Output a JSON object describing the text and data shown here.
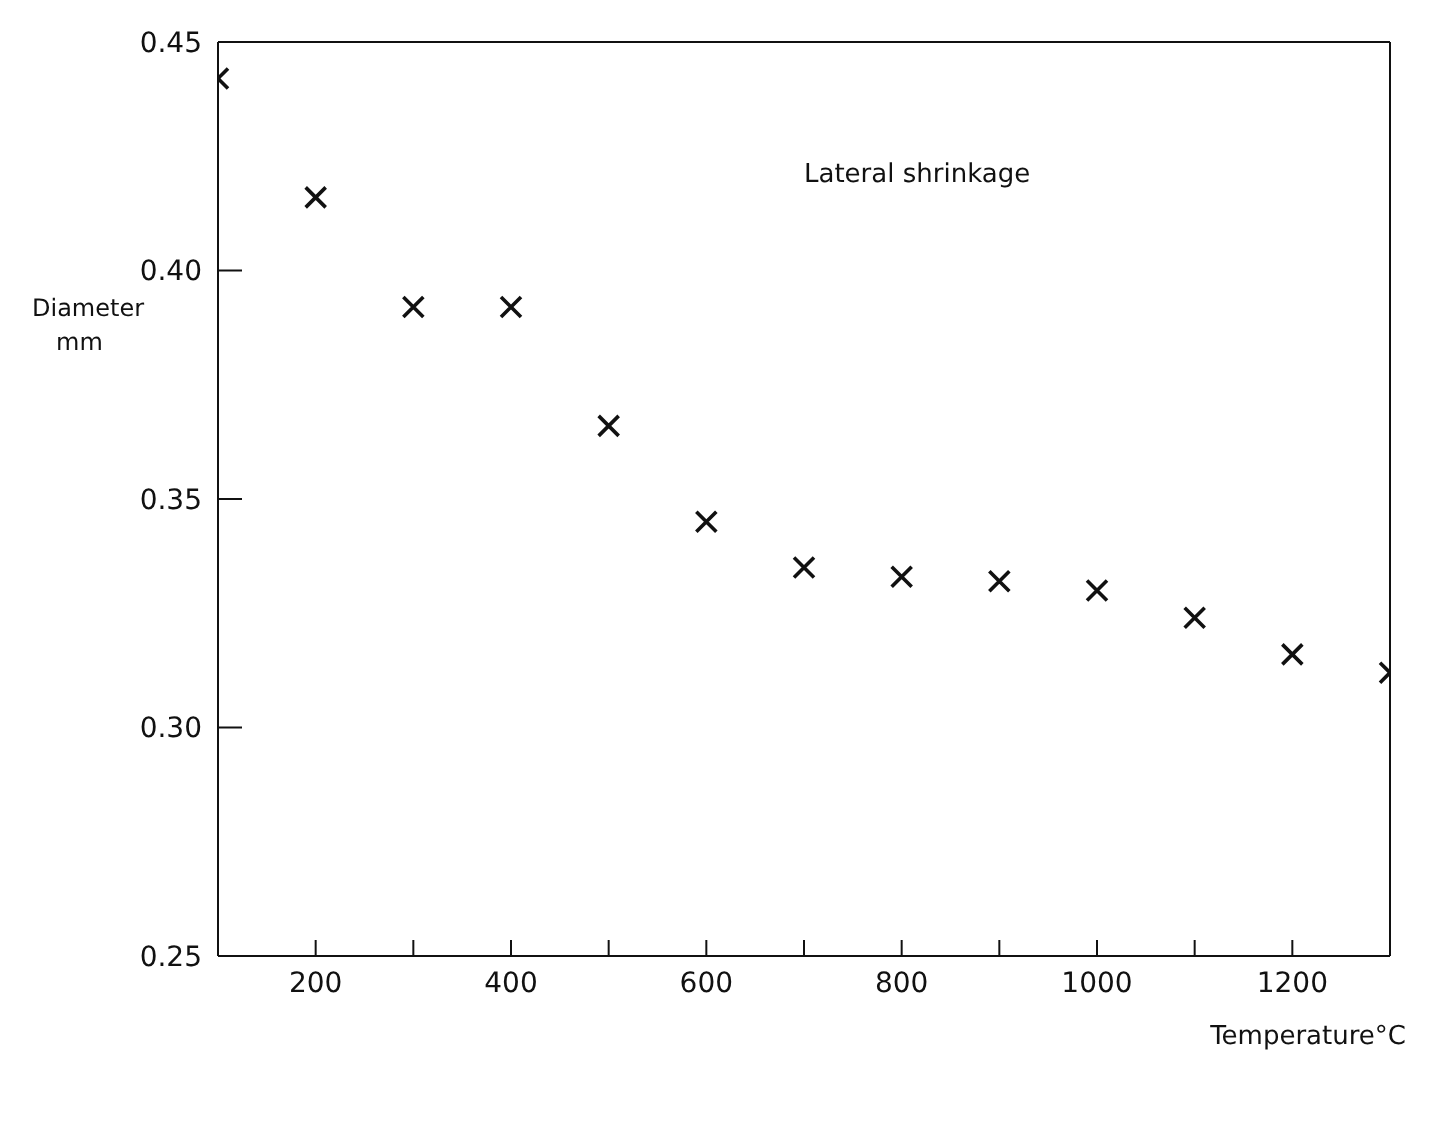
{
  "chart_data": {
    "type": "scatter",
    "xlabel": "Temperature°C",
    "ylabel": "Diameter mm",
    "annotations": [
      "Lateral shrinkage"
    ],
    "x": [
      100,
      200,
      300,
      400,
      500,
      600,
      700,
      800,
      900,
      1000,
      1100,
      1200,
      1300
    ],
    "series": [
      {
        "color": "#111111",
        "values": [
          0.442,
          0.416,
          0.392,
          0.392,
          0.366,
          0.345,
          0.335,
          0.333,
          0.332,
          0.33,
          0.324,
          0.316,
          0.312
        ]
      }
    ],
    "xlim": [
      100,
      1300
    ],
    "xticks": [
      {
        "value": 100,
        "label": null
      },
      200,
      {
        "value": 300,
        "label": null
      },
      400,
      {
        "value": 500,
        "label": null
      },
      600,
      {
        "value": 700,
        "label": null
      },
      800,
      {
        "value": 900,
        "label": null
      },
      1000,
      {
        "value": 1100,
        "label": null
      },
      1200,
      {
        "value": 1300,
        "label": null
      }
    ],
    "ylim": [
      0.25,
      0.45
    ],
    "yticks": [
      0.25,
      {
        "value": 0.3,
        "label": "0.30"
      },
      0.35,
      {
        "value": 0.4,
        "label": "0.40"
      },
      0.45
    ],
    "marker": "cross",
    "grid": false,
    "legend": false
  }
}
